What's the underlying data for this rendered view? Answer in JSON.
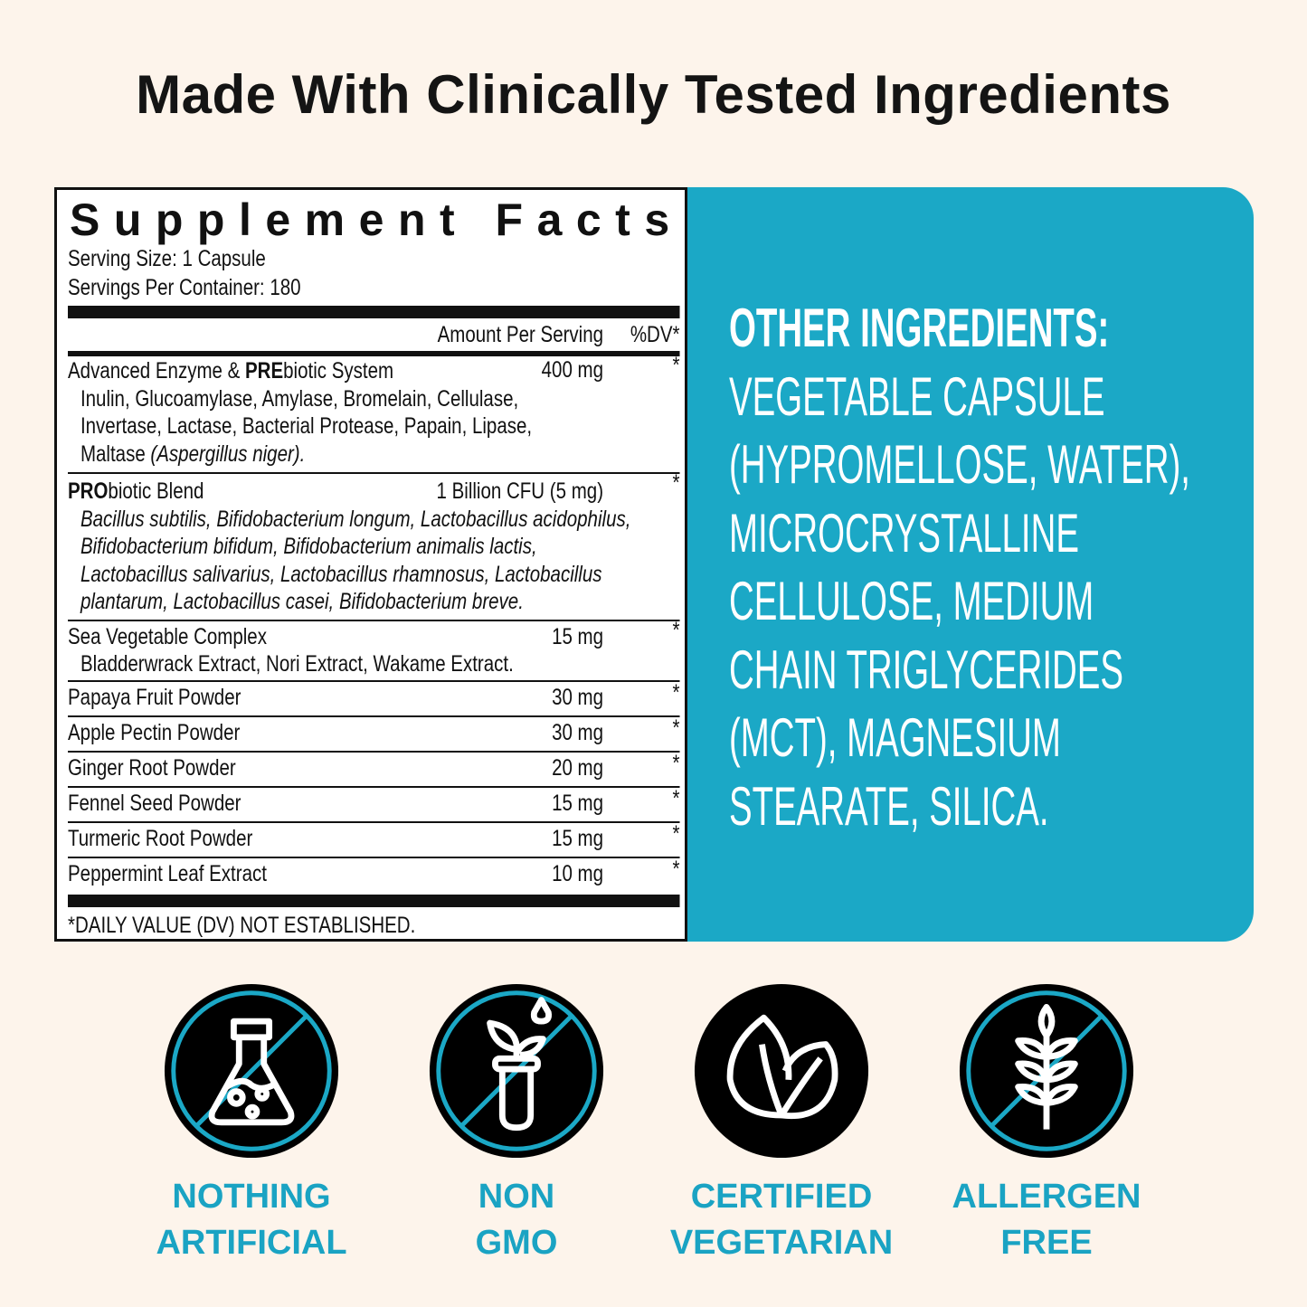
{
  "title": "Made With Clinically Tested Ingredients",
  "supplement_facts": {
    "heading": "Supplement Facts",
    "serving_size": "Serving Size: 1 Capsule",
    "servings_per_container": "Servings Per Container: 180",
    "col_amount": "Amount Per Serving",
    "col_dv": "%DV*",
    "rows": [
      {
        "name_bold": "",
        "name": "Advanced Enzyme & ",
        "name_bold2": "PRE",
        "name_rest": "biotic System",
        "amount": "400 mg",
        "dv": "*",
        "sub": [
          "Inulin, Glucoamylase, Amylase, Bromelain, Cellulase,",
          "Invertase, Lactase, Bacterial Protease, Papain, Lipase,"
        ],
        "sub_last": "Maltase ",
        "sub_last_italic": "(Aspergillus niger)."
      },
      {
        "name_bold": "PRO",
        "name": "biotic Blend",
        "amount": "1 Billion CFU (5 mg)",
        "dv": "*",
        "sub_italic": [
          "Bacillus subtilis, Bifidobacterium longum, Lactobacillus acidophilus,",
          "Bifidobacterium bifidum, Bifidobacterium animalis lactis,",
          "Lactobacillus salivarius, Lactobacillus rhamnosus, Lactobacillus",
          "plantarum, Lactobacillus casei, Bifidobacterium breve."
        ]
      },
      {
        "name": "Sea Vegetable Complex",
        "amount": "15 mg",
        "dv": "*",
        "sub": [
          "Bladderwrack Extract, Nori Extract, Wakame Extract."
        ]
      },
      {
        "name": "Papaya Fruit Powder",
        "amount": "30 mg",
        "dv": "*"
      },
      {
        "name": "Apple Pectin Powder",
        "amount": "30 mg",
        "dv": "*"
      },
      {
        "name": "Ginger Root Powder",
        "amount": "20 mg",
        "dv": "*"
      },
      {
        "name": "Fennel Seed Powder",
        "amount": "15 mg",
        "dv": "*"
      },
      {
        "name": "Turmeric Root Powder",
        "amount": "15 mg",
        "dv": "*"
      },
      {
        "name": "Peppermint Leaf Extract",
        "amount": "10 mg",
        "dv": "*"
      }
    ],
    "footnote": "*DAILY VALUE (DV) NOT ESTABLISHED."
  },
  "other_ingredients": {
    "heading": "OTHER INGREDIENTS:",
    "lines": [
      "VEGETABLE CAPSULE",
      "(HYPROMELLOSE, WATER),",
      "MICROCRYSTALLINE",
      "CELLULOSE, MEDIUM",
      "CHAIN TRIGLYCERIDES",
      "(MCT), MAGNESIUM",
      "STEARATE, SILICA."
    ]
  },
  "badges": [
    {
      "icon": "flask-icon",
      "line1": "NOTHING",
      "line2": "ARTIFICIAL"
    },
    {
      "icon": "test-tube-plant-icon",
      "line1": "NON",
      "line2": "GMO"
    },
    {
      "icon": "leaf-icon",
      "line1": "CERTIFIED",
      "line2": "VEGETARIAN"
    },
    {
      "icon": "wheat-icon",
      "line1": "ALLERGEN",
      "line2": "FREE"
    }
  ],
  "colors": {
    "background": "#fdf4eb",
    "accent": "#1ba8c6",
    "badge_fill": "#000000",
    "text": "#141414"
  }
}
